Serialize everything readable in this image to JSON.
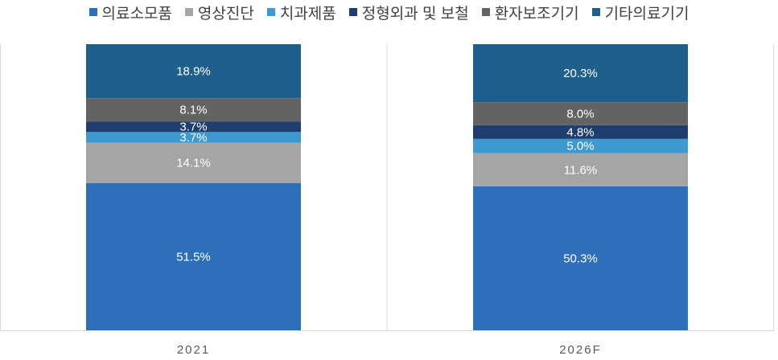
{
  "chart_data": {
    "type": "bar",
    "stacked": true,
    "normalized": true,
    "categories": [
      "2021",
      "2026F"
    ],
    "series": [
      {
        "name": "의료소모품",
        "color": "#2e6fba",
        "values": [
          51.5,
          50.3
        ],
        "labels": [
          "51.5%",
          "50.3%"
        ]
      },
      {
        "name": "영상진단",
        "color": "#a5a5a5",
        "values": [
          14.1,
          11.6
        ],
        "labels": [
          "14.1%",
          "11.6%"
        ]
      },
      {
        "name": "치과제품",
        "color": "#3d9ad1",
        "values": [
          3.7,
          5.0
        ],
        "labels": [
          "3.7%",
          "5.0%"
        ]
      },
      {
        "name": "정형외과 및 보철",
        "color": "#1f3d6e",
        "values": [
          3.7,
          4.8
        ],
        "labels": [
          "3.7%",
          "4.8%"
        ]
      },
      {
        "name": "환자보조기기",
        "color": "#636363",
        "values": [
          8.1,
          8.0
        ],
        "labels": [
          "8.1%",
          "8.0%"
        ]
      },
      {
        "name": "기타의료기기",
        "color": "#1e5f8c",
        "values": [
          18.9,
          20.3
        ],
        "labels": [
          "18.9%",
          "20.3%"
        ]
      }
    ],
    "legend": "top",
    "grid": false
  }
}
